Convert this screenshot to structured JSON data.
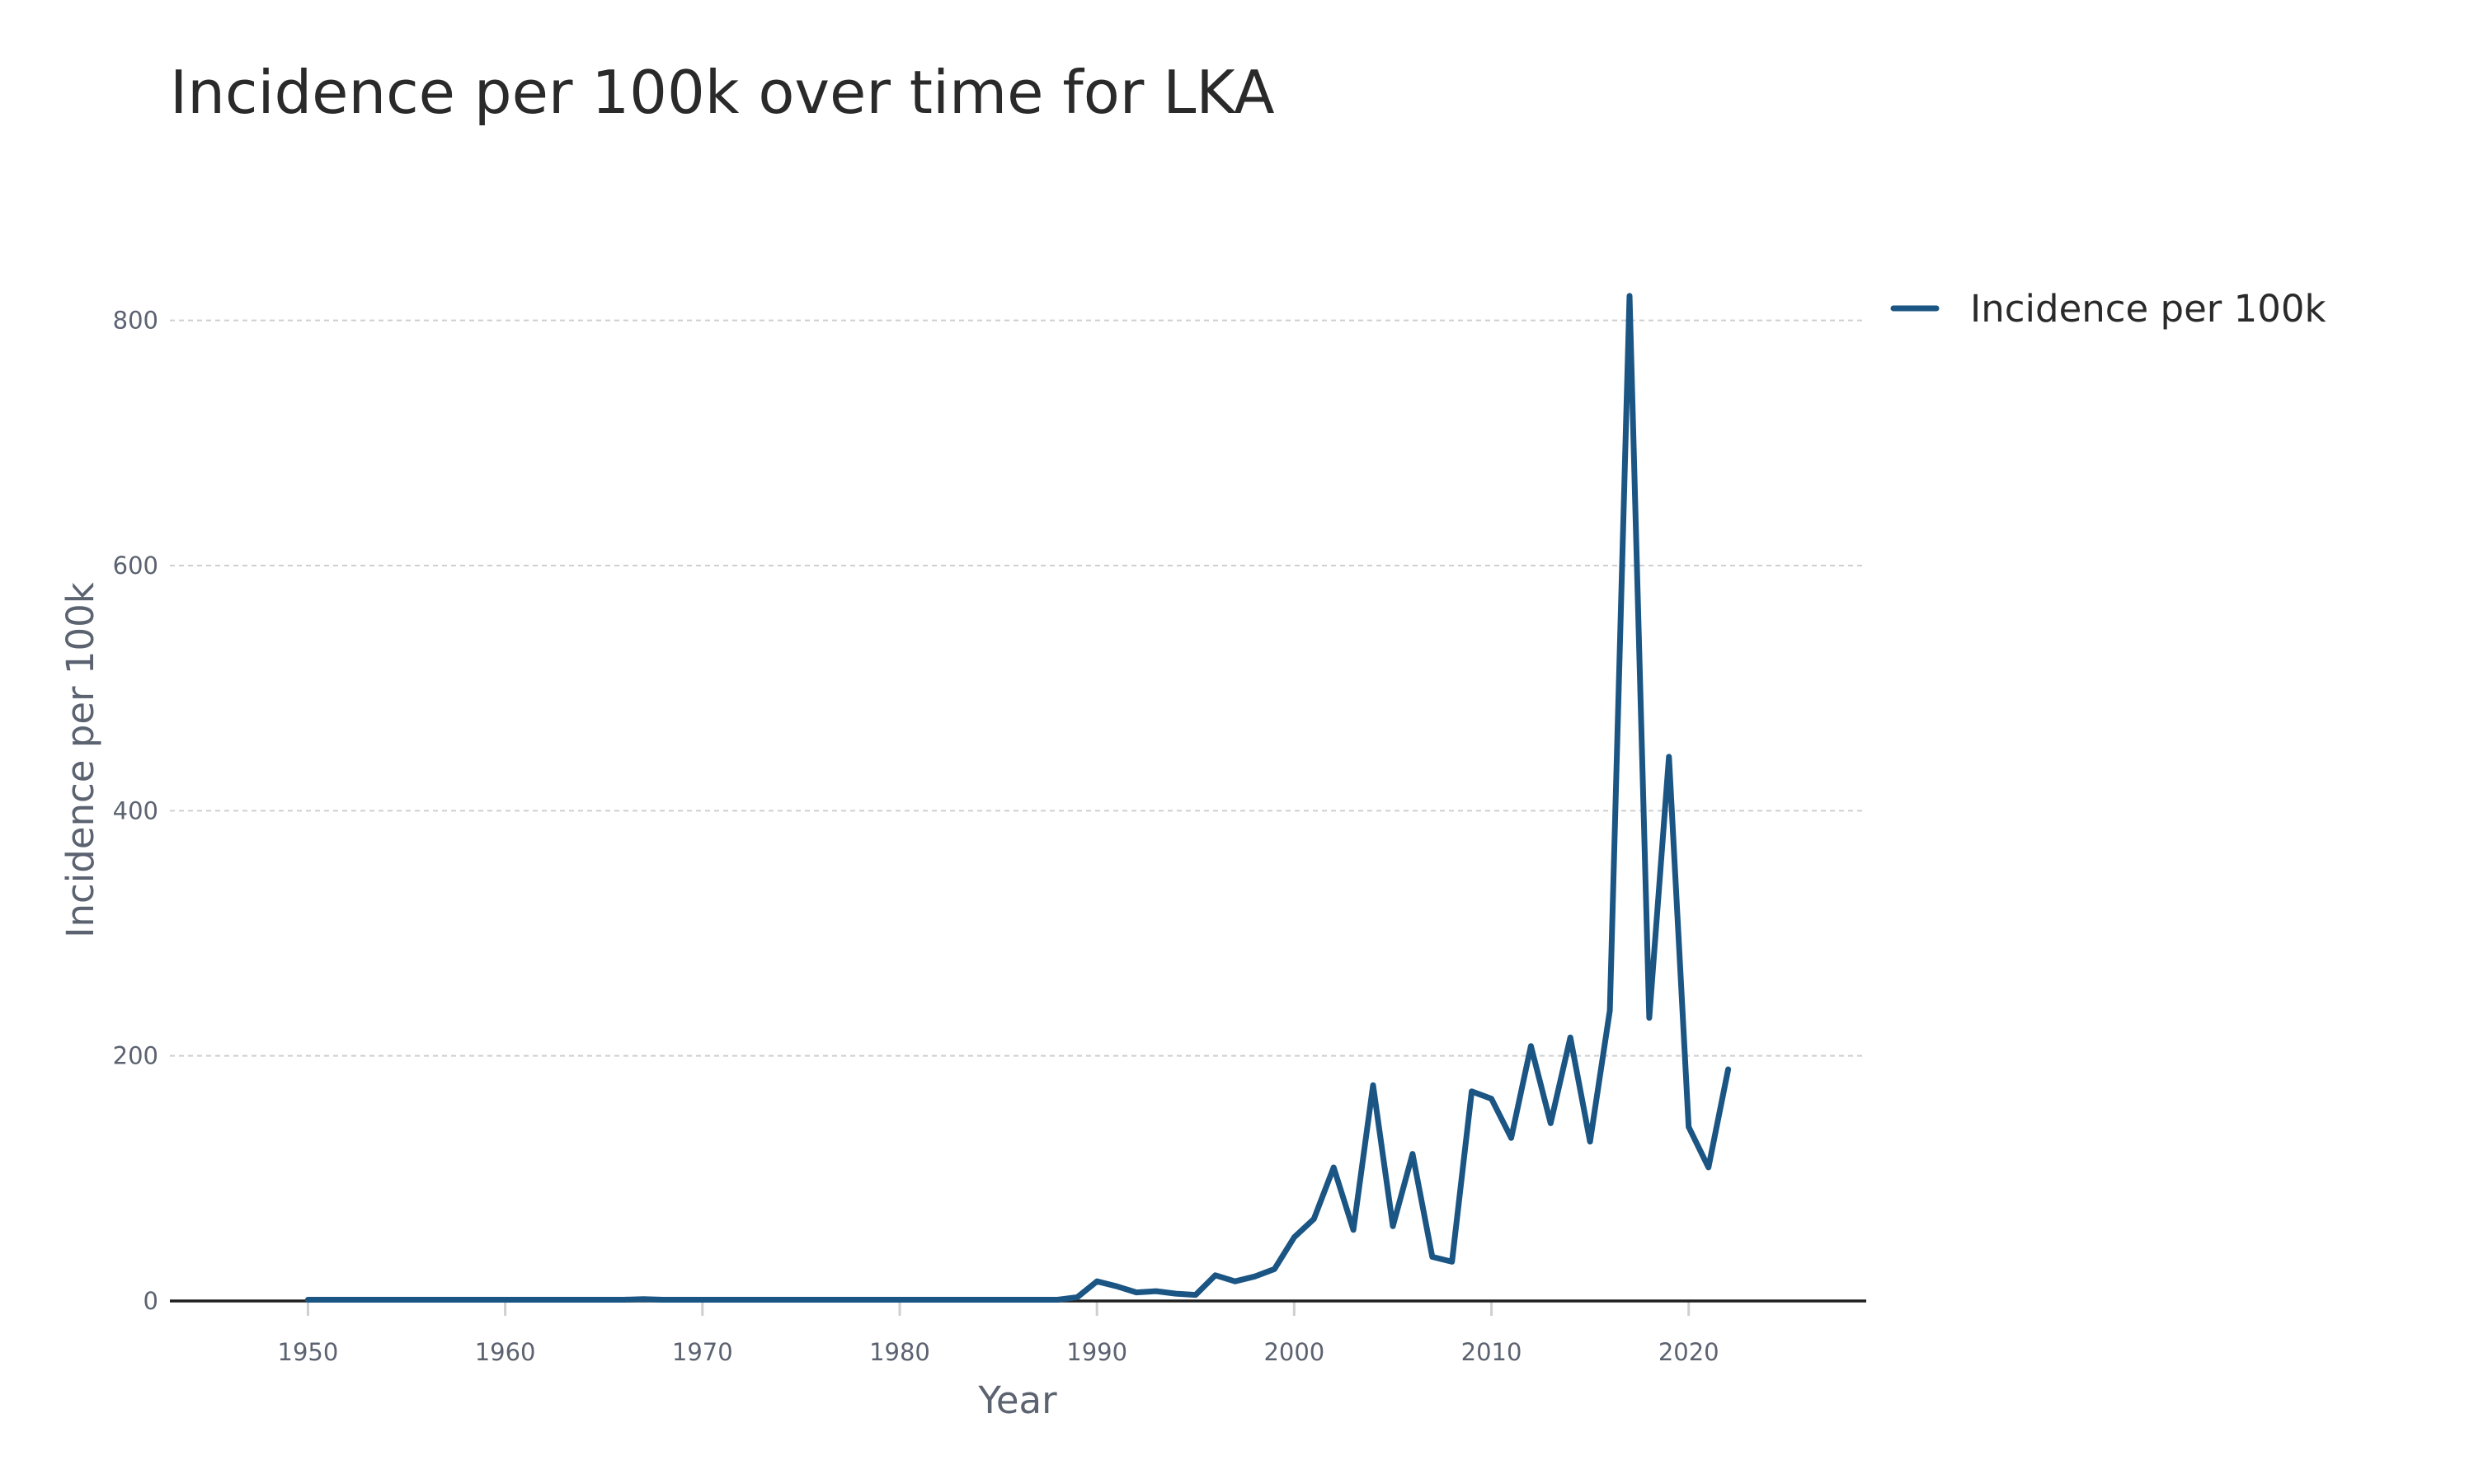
{
  "chart_data": {
    "type": "line",
    "title": "Incidence per 100k over time for LKA",
    "xlabel": "Year",
    "ylabel": "Incidence per 100k",
    "xlim": [
      1943,
      2029
    ],
    "ylim": [
      0,
      900
    ],
    "x_ticks": [
      1950,
      1960,
      1970,
      1980,
      1990,
      2000,
      2010,
      2020
    ],
    "y_ticks": [
      0,
      200,
      400,
      600,
      800
    ],
    "grid": "horizontal",
    "legend_position": "top-right",
    "series": [
      {
        "name": "Incidence per 100k",
        "color": "#1b5583",
        "x": [
          1950,
          1951,
          1952,
          1953,
          1954,
          1955,
          1956,
          1957,
          1958,
          1959,
          1960,
          1961,
          1962,
          1963,
          1964,
          1965,
          1966,
          1967,
          1968,
          1969,
          1970,
          1971,
          1972,
          1973,
          1974,
          1975,
          1976,
          1977,
          1978,
          1979,
          1980,
          1981,
          1982,
          1983,
          1984,
          1985,
          1986,
          1987,
          1988,
          1989,
          1990,
          1991,
          1992,
          1993,
          1994,
          1995,
          1996,
          1997,
          1998,
          1999,
          2000,
          2001,
          2002,
          2003,
          2004,
          2005,
          2006,
          2007,
          2008,
          2009,
          2010,
          2011,
          2012,
          2013,
          2014,
          2015,
          2016,
          2017,
          2018,
          2019,
          2020,
          2021,
          2022
        ],
        "values": [
          1,
          1,
          1,
          1,
          1,
          1,
          1,
          1,
          1,
          1,
          1,
          1,
          1,
          1,
          1,
          1,
          1,
          1.5,
          1,
          1,
          1,
          1,
          1,
          1,
          1,
          1,
          1,
          1,
          1,
          1,
          1,
          1,
          1,
          1,
          1,
          1,
          1,
          1,
          1,
          3,
          16,
          12,
          7,
          8,
          6,
          5,
          21,
          16,
          20,
          26,
          52,
          67,
          109,
          58,
          176,
          61,
          120,
          36,
          32,
          171,
          165,
          133,
          208,
          145,
          215,
          130,
          237,
          820,
          231,
          444,
          142,
          109,
          189
        ]
      }
    ]
  }
}
